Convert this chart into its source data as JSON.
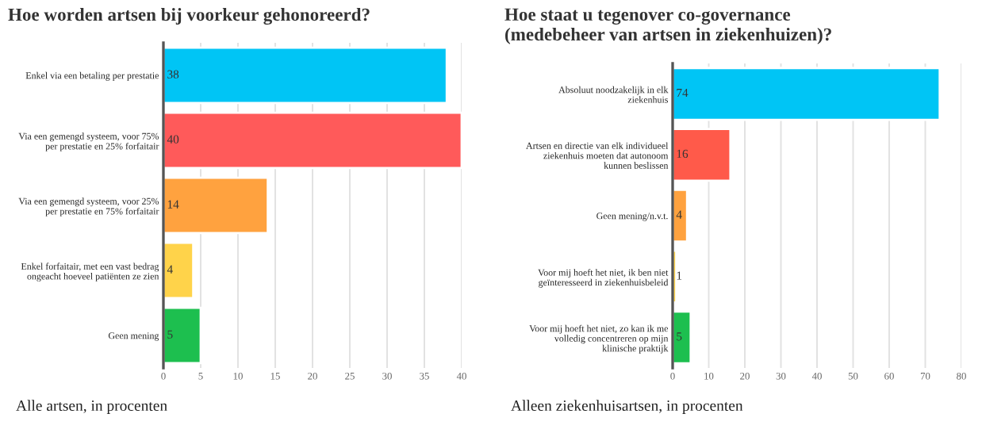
{
  "chart_data": [
    {
      "type": "bar",
      "orientation": "horizontal",
      "title": "Hoe worden artsen bij voorkeur gehonoreerd?",
      "categories": [
        "Enkel via een betaling per prestatie",
        "Via een gemengd systeem, voor 75%\nper prestatie en 25% forfaitair",
        "Via een gemengd systeem, voor 25%\nper prestatie en 75% forfaitair",
        "Enkel forfaitair, met een vast bedrag\nongeacht hoeveel patiënten ze zien",
        "Geen mening"
      ],
      "values": [
        38,
        40,
        14,
        4,
        5
      ],
      "colors": [
        "#00c5f5",
        "#ff5a5a",
        "#ffa23f",
        "#ffd34a",
        "#1dbf4f"
      ],
      "xlim": [
        0,
        40
      ],
      "xticks": [
        0,
        5,
        10,
        15,
        20,
        25,
        30,
        35,
        40
      ],
      "grid": "x",
      "data_labels": true,
      "annotations": [
        "Alle artsen, in procenten"
      ]
    },
    {
      "type": "bar",
      "orientation": "horizontal",
      "title": "Hoe staat u tegenover co-governance\n(medebeheer van artsen in ziekenhuizen)?",
      "categories": [
        "Absoluut noodzakelijk in elk\nziekenhuis",
        "Artsen en directie van elk individueel\nziekenhuis moeten dat autonoom\nkunnen beslissen",
        "Geen mening/n.v.t.",
        "Voor mij hoeft het niet, ik ben niet\ngeïnteresseerd in ziekenhuisbeleid",
        "Voor mij hoeft het niet, zo kan ik me\nvolledig concentreren op mijn\nklinische praktijk"
      ],
      "values": [
        74,
        16,
        4,
        1,
        5
      ],
      "colors": [
        "#00c5f5",
        "#ff5a4a",
        "#ffa23f",
        "#ffd34a",
        "#1dbf4f"
      ],
      "xlim": [
        0,
        80
      ],
      "xticks": [
        0,
        10,
        20,
        30,
        40,
        50,
        60,
        70,
        80
      ],
      "grid": "x",
      "data_labels": true,
      "annotations": [
        "Alleen ziekenhuisartsen, in procenten"
      ]
    }
  ]
}
